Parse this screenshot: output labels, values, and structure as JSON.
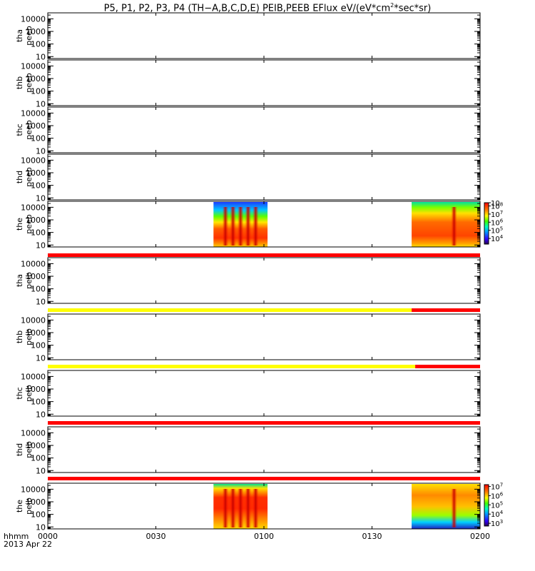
{
  "title": {
    "main": "P5, P1, P2, P3, P4 (TH−A,B,C,D,E) PEIB,PEEB EFlux eV/(eV*cm",
    "sup": "2",
    "tail": "*sec*sr)"
  },
  "footer": {
    "time_label": "hhmm",
    "date_label": "2013 Apr 22"
  },
  "chart_data": {
    "type": "heatmap",
    "x_unit": "hhmm",
    "x_range": [
      "0000",
      "0200"
    ],
    "x_ticks": [
      "0000",
      "0030",
      "0100",
      "0130",
      "0200"
    ],
    "y_scale": "log",
    "y_range": [
      7,
      30000
    ],
    "y_ticks": [
      "10",
      "100",
      "1000",
      "10000"
    ],
    "panels": [
      {
        "label": [
          "tha",
          "peeb"
        ],
        "has_data": false
      },
      {
        "label": [
          "thb",
          "peeb"
        ],
        "has_data": false
      },
      {
        "label": [
          "thc",
          "peeb"
        ],
        "has_data": false
      },
      {
        "label": [
          "thd",
          "peeb"
        ],
        "has_data": false
      },
      {
        "label": [
          "the",
          "peeb"
        ],
        "has_data": true,
        "data_intervals": [
          [
            "0046",
            "0101"
          ],
          [
            "0141",
            "0200"
          ]
        ],
        "colorbar": {
          "ticks": [
            "10",
            "10",
            "10",
            "10",
            "10",
            "10"
          ],
          "exponents": [
            "4",
            "5",
            "6",
            "7",
            "8",
            ""
          ],
          "range_log": [
            3.3,
            8.4
          ]
        }
      },
      {
        "label": [
          "tha",
          "peib"
        ],
        "has_data": false
      },
      {
        "label": [
          "thb",
          "peib"
        ],
        "has_data": false
      },
      {
        "label": [
          "thc",
          "peib"
        ],
        "has_data": false
      },
      {
        "label": [
          "thd",
          "peib"
        ],
        "has_data": false
      },
      {
        "label": [
          "the",
          "peib"
        ],
        "has_data": true,
        "data_intervals": [
          [
            "0046",
            "0101"
          ],
          [
            "0141",
            "0200"
          ]
        ],
        "colorbar": {
          "ticks": [
            "10",
            "10",
            "10",
            "10",
            "10"
          ],
          "exponents": [
            "3",
            "4",
            "5",
            "6",
            "7"
          ],
          "range_log": [
            2.7,
            7.2
          ]
        }
      }
    ],
    "mode_bars": [
      {
        "after_panel": 4,
        "segments": [
          {
            "from": "0000",
            "to": "0200",
            "color": "#ff0000"
          }
        ]
      },
      {
        "after_panel": 5,
        "segments": [
          {
            "from": "0000",
            "to": "0141",
            "color": "#ffff00"
          },
          {
            "from": "0141",
            "to": "0200",
            "color": "#ff0000"
          }
        ]
      },
      {
        "after_panel": 6,
        "segments": [
          {
            "from": "0000",
            "to": "0142",
            "color": "#ffff00"
          },
          {
            "from": "0142",
            "to": "0200",
            "color": "#ff0000"
          }
        ]
      },
      {
        "after_panel": 7,
        "segments": [
          {
            "from": "0000",
            "to": "0200",
            "color": "#ff0000"
          }
        ]
      },
      {
        "after_panel": 8,
        "segments": [
          {
            "from": "0000",
            "to": "0200",
            "color": "#ff0000"
          }
        ]
      }
    ]
  }
}
